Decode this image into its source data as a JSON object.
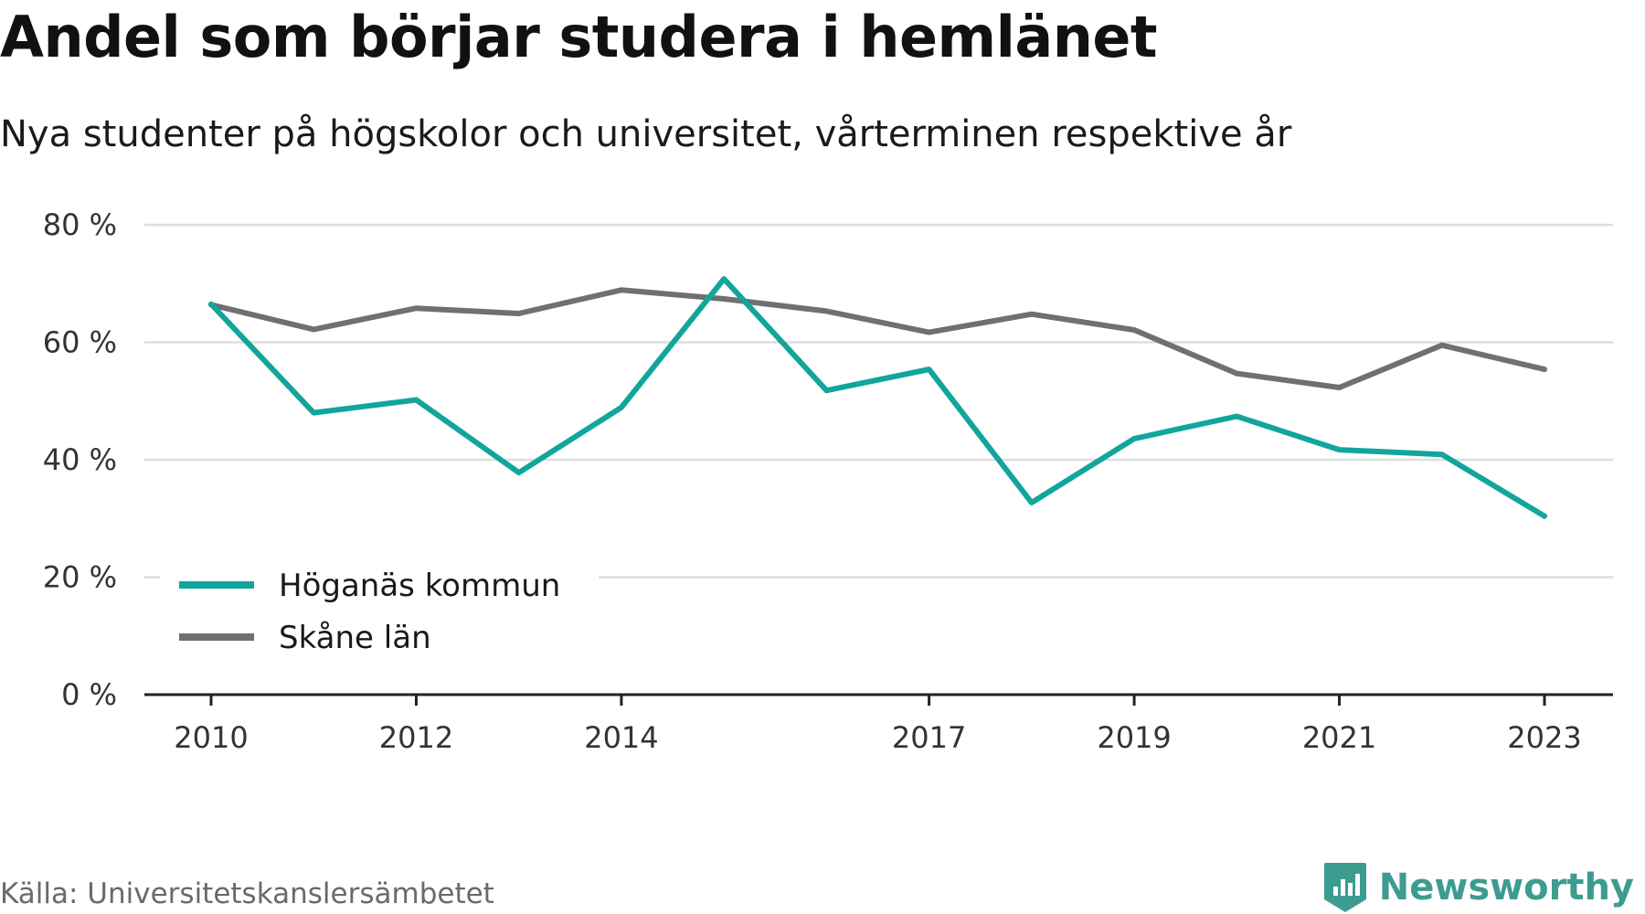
{
  "chart_data": {
    "type": "line",
    "title": "Andel som börjar studera i hemlänet",
    "subtitle": "Nya studenter på högskolor och universitet, vårterminen respektive år",
    "xlabel": "",
    "ylabel": "",
    "x": [
      2010,
      2011,
      2012,
      2013,
      2014,
      2015,
      2016,
      2017,
      2018,
      2019,
      2020,
      2021,
      2022,
      2023
    ],
    "x_tick_values": [
      2010,
      2012,
      2014,
      2017,
      2019,
      2021,
      2023
    ],
    "x_tick_labels": [
      "2010",
      "2012",
      "2014",
      "2017",
      "2019",
      "2021",
      "2023"
    ],
    "ylim": [
      0,
      80
    ],
    "y_tick_values": [
      0,
      20,
      40,
      60,
      80
    ],
    "y_tick_labels": [
      "0 %",
      "20 %",
      "40 %",
      "60 %",
      "80 %"
    ],
    "grid": true,
    "legend_position": "bottom-left",
    "series": [
      {
        "name": "Höganäs kommun",
        "color": "#12a59c",
        "values": [
          66.5,
          48.0,
          50.2,
          37.8,
          48.9,
          70.8,
          51.8,
          55.4,
          32.7,
          43.6,
          47.4,
          41.7,
          40.9,
          30.4
        ]
      },
      {
        "name": "Skåne län",
        "color": "#6f6f74",
        "values": [
          66.4,
          62.2,
          65.8,
          64.9,
          68.9,
          67.4,
          65.3,
          61.7,
          64.8,
          62.1,
          54.7,
          52.3,
          59.5,
          55.4
        ]
      }
    ]
  },
  "footer": {
    "source": "Källa: Universitetskanslersämbetet",
    "brand": "Newsworthy",
    "brand_color": "#3d9c90",
    "brand_icon": "bar-chart-badge-icon"
  }
}
